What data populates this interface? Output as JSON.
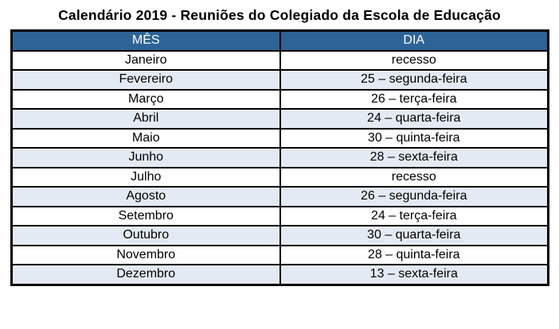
{
  "title": "Calendário 2019 - Reuniões do Colegiado da Escola de Educação",
  "table": {
    "headers": [
      "MÊS",
      "DIA"
    ],
    "rows": [
      [
        "Janeiro",
        "recesso"
      ],
      [
        "Fevereiro",
        "25 – segunda-feira"
      ],
      [
        "Março",
        "26 – terça-feira"
      ],
      [
        "Abril",
        "24 – quarta-feira"
      ],
      [
        "Maio",
        "30 – quinta-feira"
      ],
      [
        "Junho",
        "28 – sexta-feira"
      ],
      [
        "Julho",
        "recesso"
      ],
      [
        "Agosto",
        "26 – segunda-feira"
      ],
      [
        "Setembro",
        "24 – terça-feira"
      ],
      [
        "Outubro",
        "30 – quarta-feira"
      ],
      [
        "Novembro",
        "28 – quinta-feira"
      ],
      [
        "Dezembro",
        "13 – sexta-feira"
      ]
    ]
  },
  "colors": {
    "header_bg": "#2d6396",
    "header_text": "#ffffff",
    "row_bg": "#ffffff",
    "row_alt_bg": "#e4eaf3",
    "border": "#000000"
  }
}
